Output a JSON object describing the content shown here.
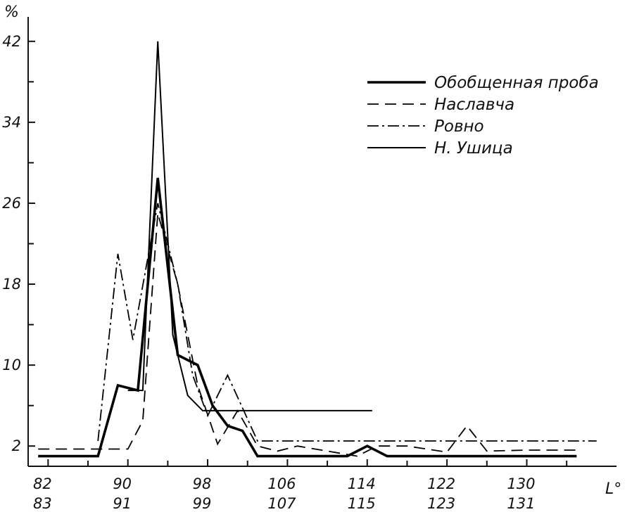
{
  "chart_data": {
    "type": "line",
    "xlabel": "L°",
    "ylabel": "%",
    "xlim": [
      80,
      139
    ],
    "ylim": [
      0,
      44
    ],
    "x_ticks_major": [
      {
        "value": 82,
        "top": "82",
        "bottom": "83"
      },
      {
        "value": 90,
        "top": "90",
        "bottom": "91"
      },
      {
        "value": 98,
        "top": "98",
        "bottom": "99"
      },
      {
        "value": 106,
        "top": "106",
        "bottom": "107"
      },
      {
        "value": 114,
        "top": "114",
        "bottom": "115"
      },
      {
        "value": 122,
        "top": "122",
        "bottom": "123"
      },
      {
        "value": 130,
        "top": "130",
        "bottom": "131"
      }
    ],
    "x_ticks_minor": [
      86,
      94,
      102,
      110,
      118,
      126,
      134
    ],
    "y_ticks_major": [
      {
        "value": 2,
        "label": "2"
      },
      {
        "value": 10,
        "label": "10"
      },
      {
        "value": 18,
        "label": "18"
      },
      {
        "value": 26,
        "label": "26"
      },
      {
        "value": 34,
        "label": "34"
      },
      {
        "value": 42,
        "label": "42"
      }
    ],
    "y_ticks_minor": [
      6,
      14,
      22,
      30,
      38
    ],
    "legend": {
      "position": "top-right"
    },
    "series": [
      {
        "name": "Обобщенная проба",
        "style": "thick-solid",
        "x": [
          81,
          87,
          89,
          91,
          93,
          95,
          97,
          98.5,
          100,
          101.5,
          103,
          106,
          112,
          114,
          116,
          126,
          135
        ],
        "y": [
          1,
          1,
          8,
          7.5,
          28.5,
          11,
          10,
          6,
          4,
          3.5,
          1,
          1,
          1,
          2,
          1,
          1,
          1
        ]
      },
      {
        "name": "Наславча",
        "style": "dashed",
        "x": [
          81,
          88,
          90,
          91.5,
          93,
          95,
          97,
          99,
          101,
          103,
          105,
          107,
          110,
          113,
          115,
          118,
          122,
          124,
          126,
          130,
          135
        ],
        "y": [
          1.7,
          1.7,
          1.7,
          4.5,
          25,
          18,
          8,
          2.2,
          5.5,
          2,
          1.5,
          2,
          1.5,
          1,
          2,
          2,
          1.4,
          4,
          1.5,
          1.6,
          1.6
        ]
      },
      {
        "name": "Ровно",
        "style": "dash-dot",
        "x": [
          87,
          89,
          90.5,
          93,
          95,
          96.5,
          98,
          100,
          103,
          106,
          115,
          125,
          137
        ],
        "y": [
          2.5,
          21,
          12.5,
          26,
          18,
          9,
          5,
          9,
          2.5,
          2.5,
          2.5,
          2.5,
          2.5
        ]
      },
      {
        "name": "Н. Ушица",
        "style": "thin-solid",
        "x": [
          90,
          91.5,
          93,
          94.5,
          96,
          97.5,
          99,
          100,
          108,
          114.5
        ],
        "y": [
          7.5,
          7.5,
          42,
          13,
          7,
          5.5,
          5.5,
          5.5,
          5.5,
          5.5
        ]
      }
    ]
  }
}
